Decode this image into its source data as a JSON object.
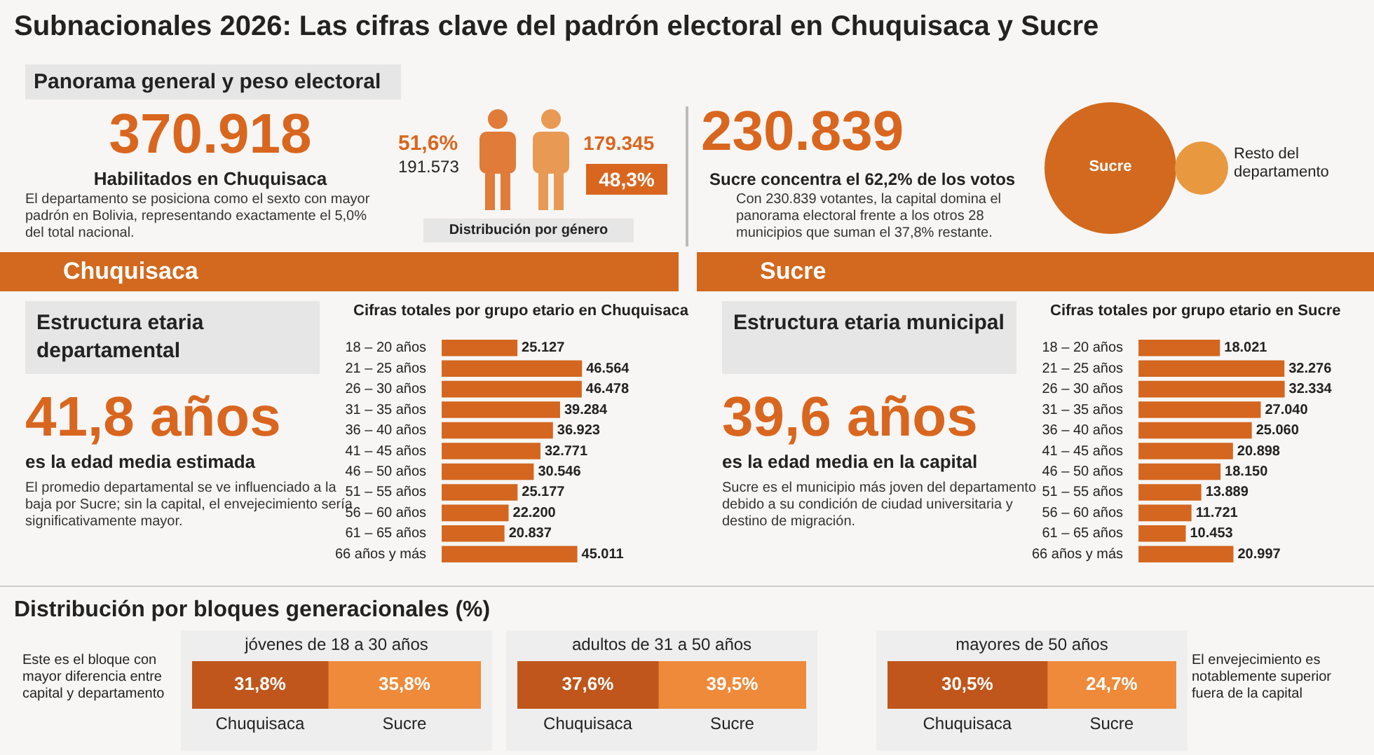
{
  "chart_data": [
    {
      "type": "other",
      "title": "Subnacionales 2026: Las cifras clave del padrón electoral en Chuquisaca y Sucre",
      "subtitle": "Panorama general y peso electoral",
      "annotations": [
        "370.918",
        "Habilitados en Chuquisaca",
        "El departamento se posiciona como el sexto con mayor padrón en Bolivia, representando exactamente el 5,0% del total nacional."
      ]
    },
    {
      "type": "other",
      "title": "Distribución por género",
      "annotations": [
        "51,6%",
        "191.573",
        "179.345",
        "48,3%"
      ]
    },
    {
      "type": "other",
      "annotations": [
        "230.839",
        "Sucre concentra el 62,2% de los votos",
        "Con 230.839 votantes, la capital domina el panorama electoral frente a los otros 28 municipios que suman el 37,8% restante.",
        "Sucre",
        "Resto del departamento"
      ]
    },
    {
      "type": "other",
      "title": "Chuquisaca",
      "subtitle": "Estructura etaria departamental",
      "annotations": [
        "41,8 años",
        "es la edad media estimada",
        "El promedio departamental se ve influenciado a la baja por Sucre; sin la capital, el envejecimiento sería significativamente mayor."
      ]
    },
    {
      "type": "bar",
      "orientation": "horizontal",
      "title": "Cifras totales por grupo etario en Chuquisaca",
      "categories": [
        "18 – 20 años",
        "21 – 25 años",
        "26 – 30 años",
        "31 – 35 años",
        "36 – 40 años",
        "41 – 45 años",
        "46 – 50 años",
        "51 – 55 años",
        "56 – 60 años",
        "61 – 65 años",
        "66 años y más"
      ],
      "values": [
        25127,
        46564,
        46478,
        39284,
        36923,
        32771,
        30546,
        25177,
        22200,
        20837,
        45011
      ],
      "value_labels": [
        "25.127",
        "46.564",
        "46.478",
        "39.284",
        "36.923",
        "32.771",
        "30.546",
        "25.177",
        "22.200",
        "20.837",
        "45.011"
      ],
      "color": "#d4661f"
    },
    {
      "type": "other",
      "title": "Sucre",
      "subtitle": "Estructura etaria municipal",
      "annotations": [
        "39,6 años",
        "es la edad media en la capital",
        "Sucre es el municipio más joven del departamento debido a su condición de ciudad universitaria y destino de migración."
      ]
    },
    {
      "type": "bar",
      "orientation": "horizontal",
      "title": "Cifras totales por grupo etario en Sucre",
      "categories": [
        "18 – 20 años",
        "21 – 25 años",
        "26 – 30 años",
        "31 – 35 años",
        "36 – 40 años",
        "41 – 45 años",
        "46 – 50 años",
        "51 – 55 años",
        "56 – 60 años",
        "61 – 65 años",
        "66 años y más"
      ],
      "values": [
        18021,
        32276,
        32334,
        27040,
        25060,
        20898,
        18150,
        13889,
        11721,
        10453,
        20997
      ],
      "value_labels": [
        "18.021",
        "32.276",
        "32.334",
        "27.040",
        "25.060",
        "20.898",
        "18.150",
        "13.889",
        "11.721",
        "10.453",
        "20.997"
      ],
      "color": "#d4661f"
    },
    {
      "type": "other",
      "title": "Distribución por bloques generacionales (%)",
      "annotations": [
        "Este es el bloque con mayor diferencia entre capital y departamento",
        "El envejecimiento es notablemente superior fuera de la capital"
      ]
    },
    {
      "type": "bar",
      "orientation": "horizontal",
      "stacked": true,
      "title": "jóvenes de 18 a 30 años",
      "categories": [
        null
      ],
      "series": [
        {
          "name": "Chuquisaca",
          "color": "#c0561b",
          "values": [
            31.8
          ],
          "value_labels": [
            "31,8%"
          ]
        },
        {
          "name": "Sucre",
          "color": "#ee8a3a",
          "values": [
            35.8
          ],
          "value_labels": [
            "35,8%"
          ]
        }
      ]
    },
    {
      "type": "bar",
      "orientation": "horizontal",
      "stacked": true,
      "title": "adultos de 31 a 50 años",
      "categories": [
        null
      ],
      "series": [
        {
          "name": "Chuquisaca",
          "color": "#c0561b",
          "values": [
            37.6
          ],
          "value_labels": [
            "37,6%"
          ]
        },
        {
          "name": "Sucre",
          "color": "#ee8a3a",
          "values": [
            39.5
          ],
          "value_labels": [
            "39,5%"
          ]
        }
      ]
    },
    {
      "type": "bar",
      "orientation": "horizontal",
      "stacked": true,
      "title": "mayores de 50 años",
      "categories": [
        null
      ],
      "series": [
        {
          "name": "Chuquisaca",
          "color": "#c0561b",
          "values": [
            30.5
          ],
          "value_labels": [
            "30,5%"
          ]
        },
        {
          "name": "Sucre",
          "color": "#ee8a3a",
          "values": [
            24.7
          ],
          "value_labels": [
            "24,7%"
          ]
        }
      ]
    }
  ]
}
